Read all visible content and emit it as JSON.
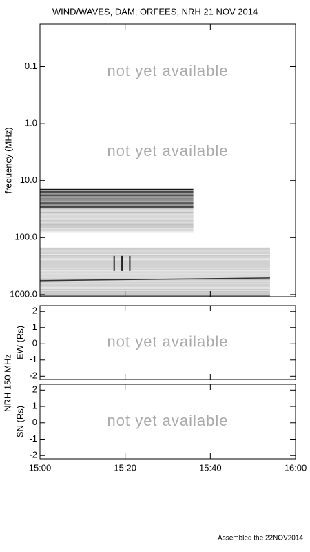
{
  "title": "WIND/WAVES, DAM, ORFEES, NRH  21 NOV 2014",
  "footer": "Assembled the 22NOV2014",
  "nrh_label": "NRH  150 MHz",
  "chart_data": [
    {
      "type": "spectrogram",
      "ylabel": "frequency (MHz)",
      "yscale": "log",
      "yinverted": true,
      "ylim": [
        0.018,
        1090
      ],
      "yticks": [
        0.1,
        {
          "value": 1,
          "label": "1.0"
        },
        {
          "value": 10,
          "label": "10.0"
        },
        {
          "value": 100,
          "label": "100.0"
        },
        {
          "value": 1000,
          "label": "1000.0"
        }
      ],
      "xlim": [
        "15:00",
        "16:00"
      ],
      "xticks": [
        "15:00",
        "15:20",
        "15:40",
        "16:00"
      ],
      "annotations": [
        "not yet available",
        "not yet available"
      ],
      "spectra": [
        {
          "x": [
            "15:00",
            "15:36"
          ],
          "y": [
            14,
            78
          ]
        },
        {
          "x": [
            "15:00",
            "15:54"
          ],
          "y": [
            150,
            1090
          ]
        }
      ]
    },
    {
      "type": "position",
      "ylabel": "EW (Rs)",
      "ylim": [
        -2.2,
        2.35
      ],
      "yticks": [
        -2,
        -1,
        0,
        1,
        2
      ],
      "xlim": [
        "15:00",
        "16:00"
      ],
      "xticks": [
        "15:00",
        "15:20",
        "15:40",
        "16:00"
      ],
      "annotations": [
        "not yet available"
      ]
    },
    {
      "type": "position",
      "ylabel": "SN (Rs)",
      "ylim": [
        -2.2,
        2.35
      ],
      "yticks": [
        -2,
        -1,
        0,
        1,
        2
      ],
      "xlim": [
        "15:00",
        "16:00"
      ],
      "xticks": [
        "15:00",
        "15:20",
        "15:40",
        "16:00"
      ],
      "annotations": [
        "not yet available"
      ]
    }
  ]
}
